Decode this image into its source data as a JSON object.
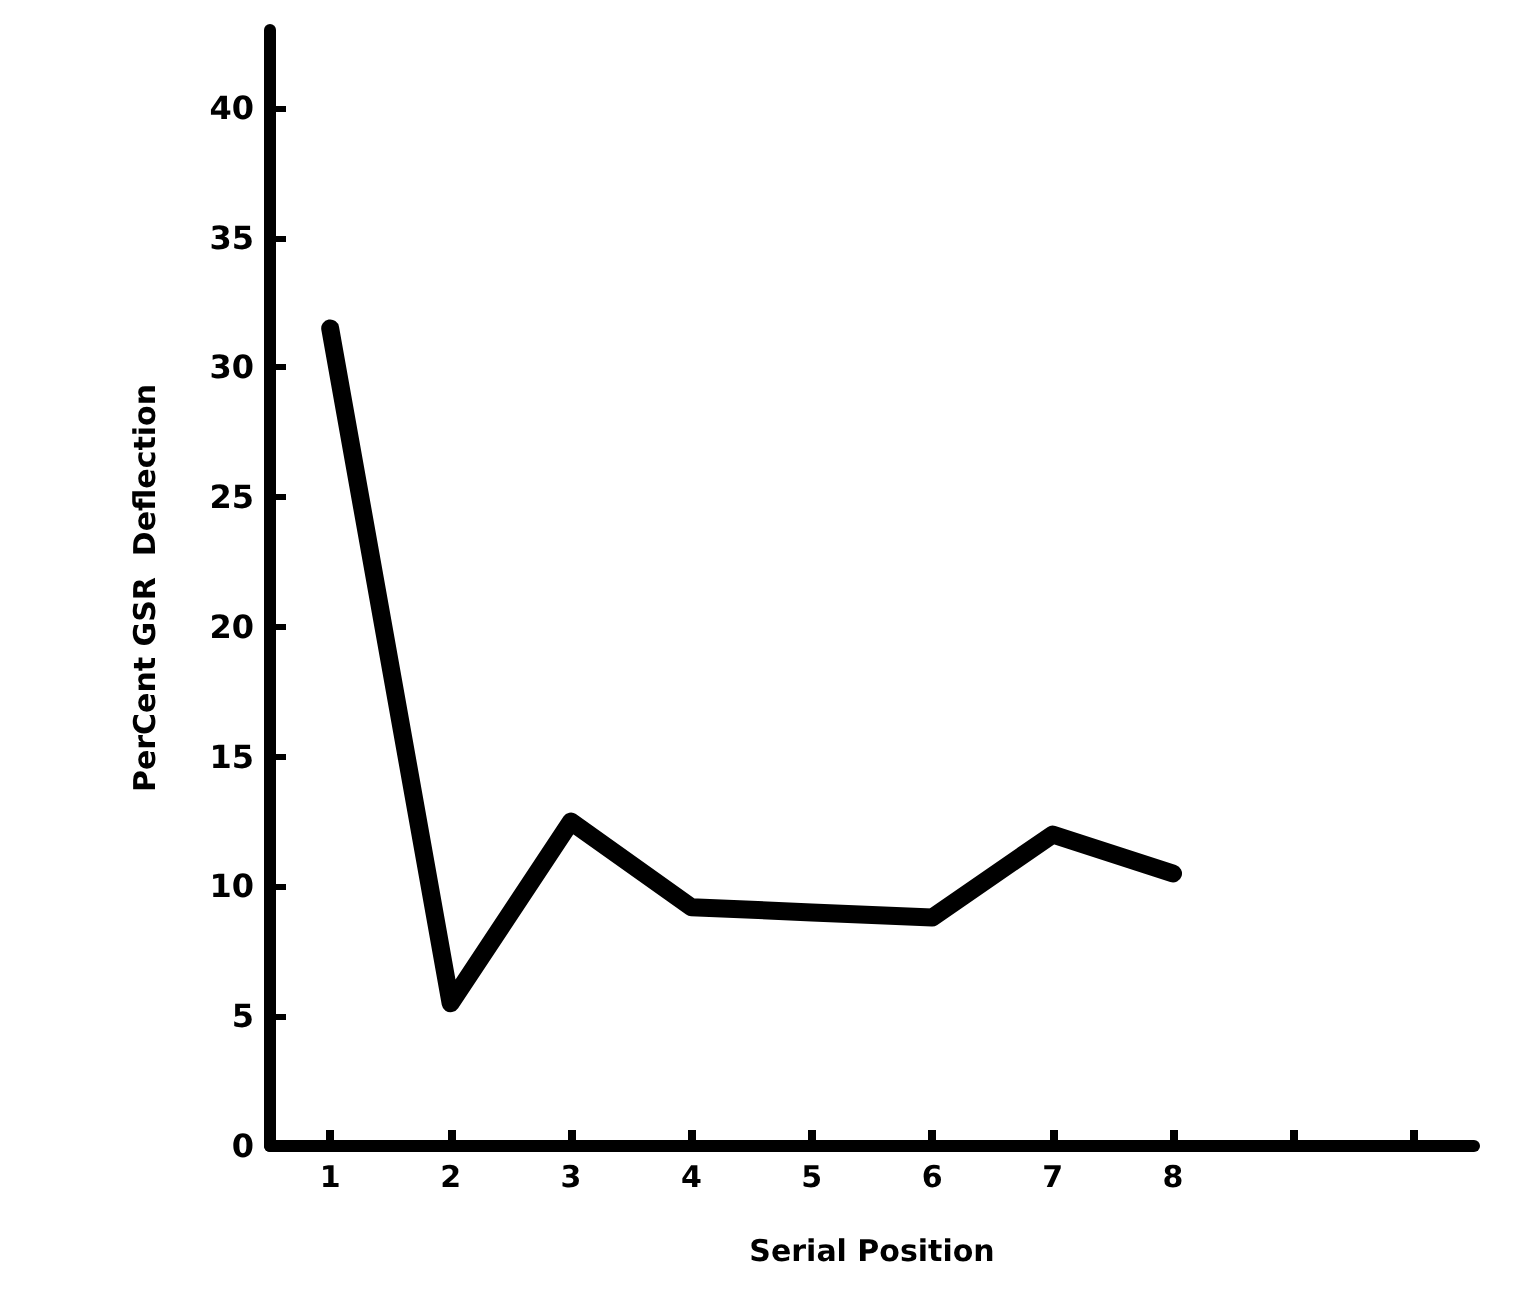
{
  "chart_data": {
    "type": "line",
    "xlabel": "Serial Position",
    "ylabel": "PerCent GSR  Deflection",
    "categories": [
      "1",
      "2",
      "3",
      "4",
      "5",
      "6",
      "7",
      "8",
      null,
      null
    ],
    "series": [
      {
        "color": "#000000",
        "values": [
          31.5,
          5.5,
          12.5,
          9.2,
          9,
          8.8,
          12,
          10.5,
          null,
          null
        ]
      }
    ],
    "ylim": [
      0,
      43
    ],
    "yticks": [
      0,
      5,
      10,
      15,
      20,
      25,
      30,
      35,
      40
    ],
    "grid": false,
    "line_style": "solid"
  }
}
